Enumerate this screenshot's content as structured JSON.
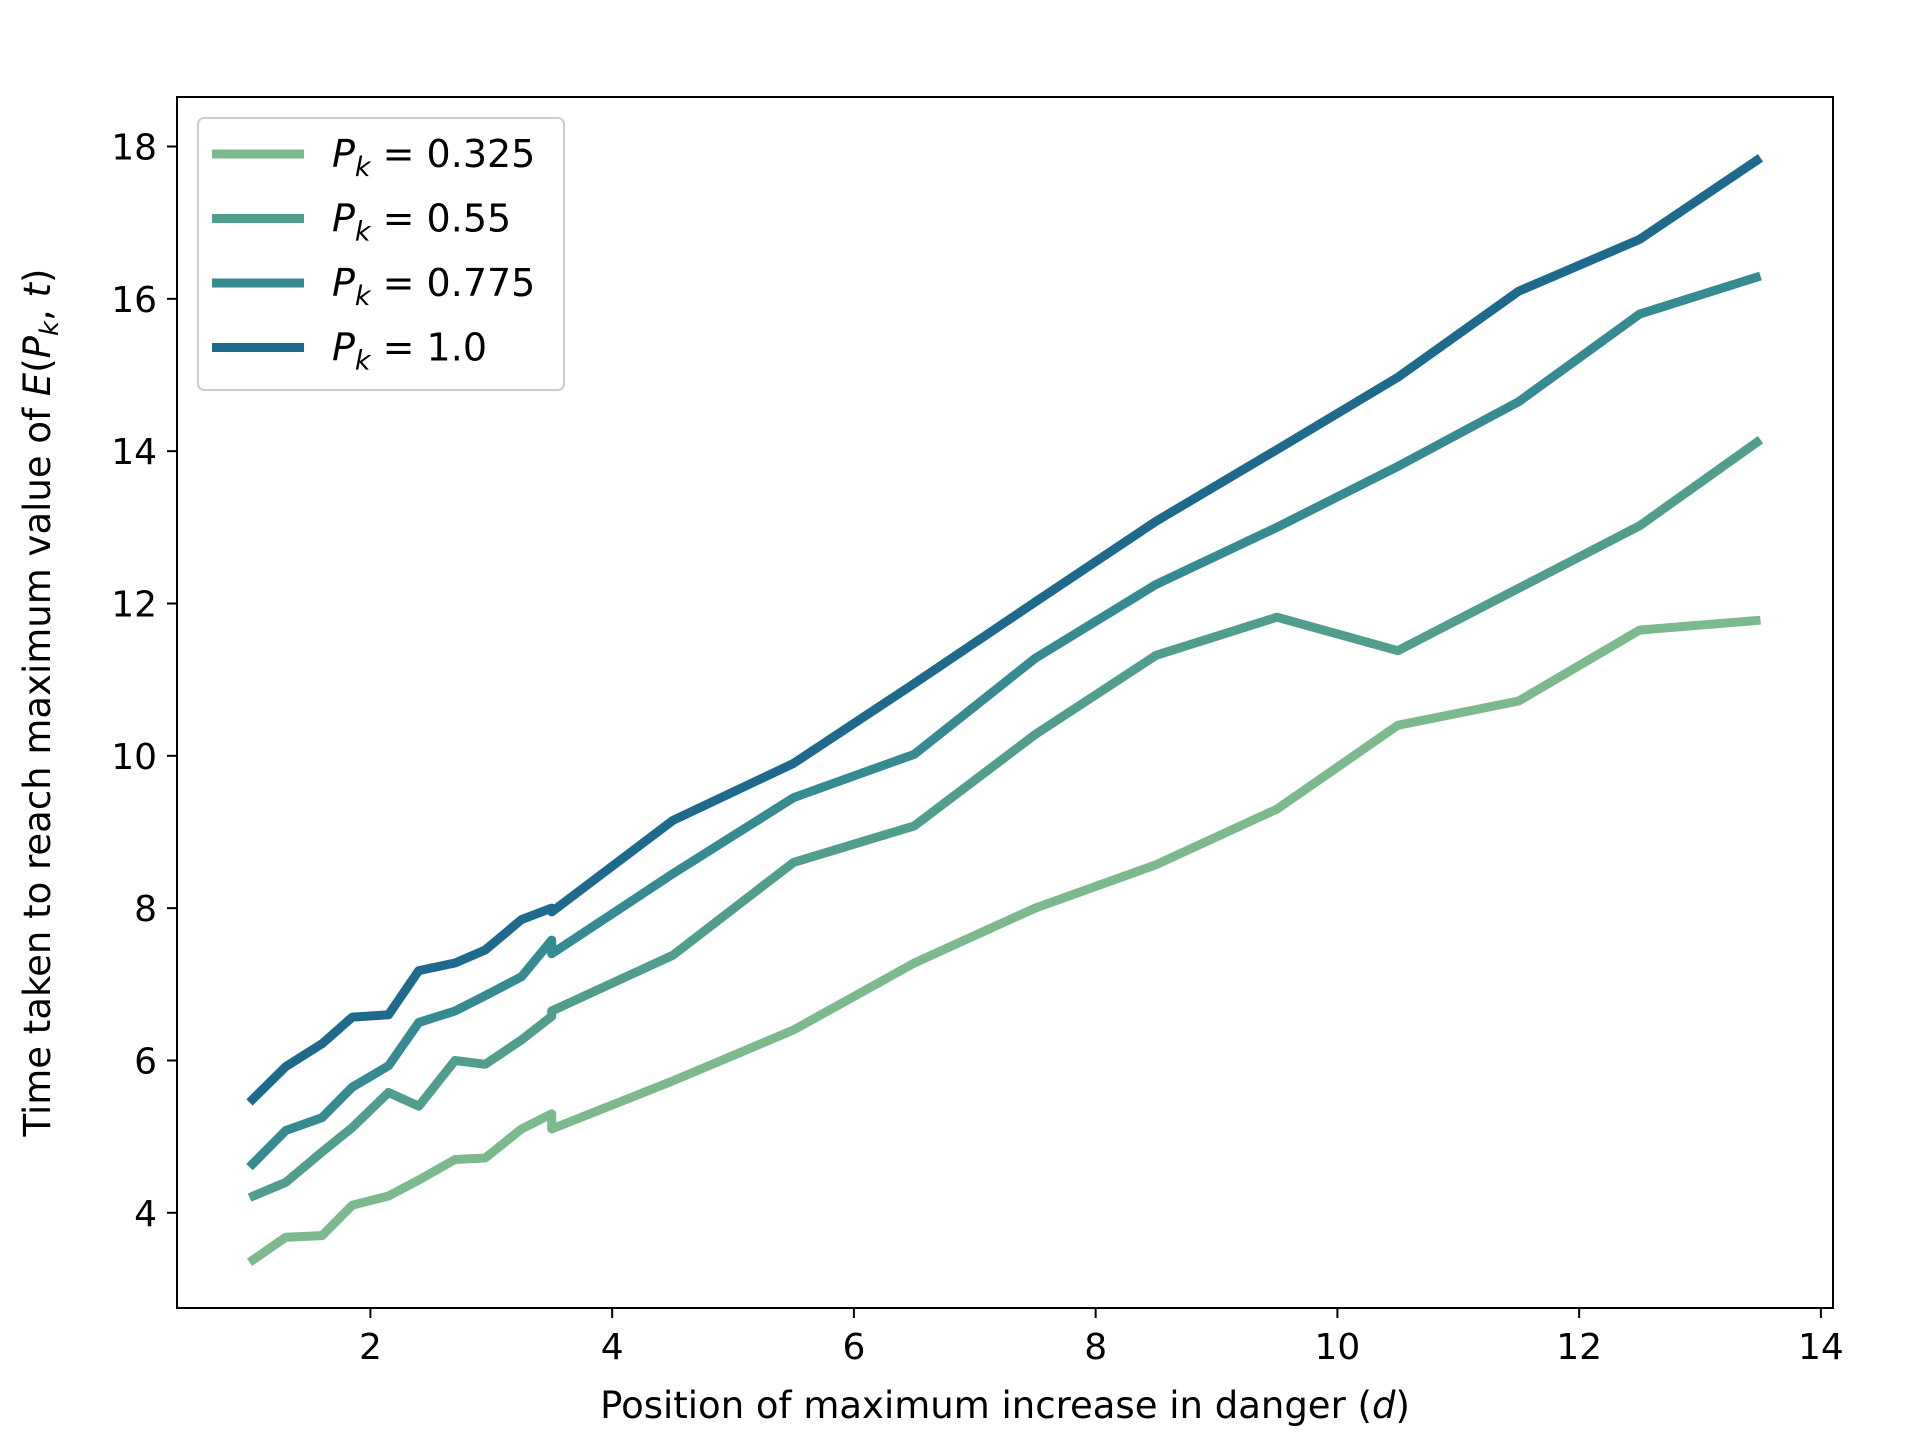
{
  "chart_data": {
    "type": "line",
    "title": "",
    "xlabel": "Position of maximum increase in danger (d)",
    "ylabel": "Time taken to reach maximum value of E(P_k, t)",
    "xlim": [
      0.4,
      14.1
    ],
    "ylim": [
      2.75,
      18.65
    ],
    "xticks": [
      2,
      4,
      6,
      8,
      10,
      12,
      14
    ],
    "yticks": [
      4,
      6,
      8,
      10,
      12,
      14,
      16,
      18
    ],
    "grid": false,
    "legend_position": "top-left",
    "series": [
      {
        "name": "P_k = 0.325",
        "legend_prefix": "P",
        "legend_sub": "k",
        "legend_value": " = 0.325",
        "color": "#7cb98f",
        "x": [
          1.0,
          1.3,
          1.6,
          1.85,
          2.15,
          2.4,
          2.7,
          2.95,
          3.25,
          3.5,
          3.5,
          4.5,
          5.5,
          6.5,
          7.5,
          8.5,
          9.5,
          10.5,
          11.5,
          12.5,
          13.5
        ],
        "y": [
          3.35,
          3.68,
          3.7,
          4.1,
          4.22,
          4.43,
          4.7,
          4.72,
          5.1,
          5.3,
          5.1,
          5.73,
          6.4,
          7.28,
          8.0,
          8.57,
          9.3,
          10.4,
          10.72,
          11.65,
          11.78
        ]
      },
      {
        "name": "P_k = 0.55",
        "legend_prefix": "P",
        "legend_sub": "k",
        "legend_value": " = 0.55",
        "color": "#519e8e",
        "x": [
          1.0,
          1.3,
          1.6,
          1.85,
          2.15,
          2.4,
          2.7,
          2.95,
          3.25,
          3.5,
          3.5,
          4.5,
          5.5,
          6.5,
          7.5,
          8.5,
          9.5,
          10.5,
          11.5,
          12.5,
          13.5
        ],
        "y": [
          4.2,
          4.4,
          4.8,
          5.12,
          5.58,
          5.4,
          6.0,
          5.95,
          6.27,
          6.58,
          6.65,
          7.38,
          8.6,
          9.08,
          10.28,
          11.32,
          11.82,
          11.38,
          12.2,
          13.02,
          14.15
        ]
      },
      {
        "name": "P_k = 0.775",
        "legend_prefix": "P",
        "legend_sub": "k",
        "legend_value": " = 0.775",
        "color": "#368a91",
        "x": [
          1.0,
          1.3,
          1.6,
          1.85,
          2.15,
          2.4,
          2.7,
          2.95,
          3.25,
          3.5,
          3.5,
          4.5,
          5.5,
          6.5,
          7.5,
          8.5,
          9.5,
          10.5,
          11.5,
          12.5,
          13.5
        ],
        "y": [
          4.6,
          5.08,
          5.25,
          5.65,
          5.93,
          6.5,
          6.65,
          6.85,
          7.1,
          7.58,
          7.4,
          8.45,
          9.45,
          10.02,
          11.28,
          12.25,
          13.0,
          13.8,
          14.65,
          15.8,
          16.3
        ]
      },
      {
        "name": "P_k = 1.0",
        "legend_prefix": "P",
        "legend_sub": "k",
        "legend_value": " = 1.0",
        "color": "#1e6a8c",
        "x": [
          1.0,
          1.3,
          1.6,
          1.85,
          2.15,
          2.4,
          2.7,
          2.95,
          3.25,
          3.5,
          3.5,
          4.5,
          5.5,
          6.5,
          7.5,
          8.5,
          9.5,
          10.5,
          11.5,
          12.5,
          13.5
        ],
        "y": [
          5.45,
          5.92,
          6.22,
          6.57,
          6.6,
          7.18,
          7.28,
          7.45,
          7.85,
          8.0,
          7.95,
          9.15,
          9.9,
          10.95,
          12.02,
          13.08,
          14.02,
          14.97,
          16.1,
          16.78,
          17.85
        ]
      }
    ]
  }
}
